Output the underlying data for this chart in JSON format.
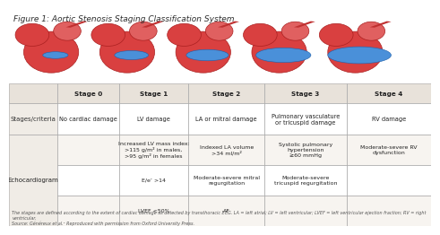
{
  "title": "Figure 1: Aortic Stenosis Staging Classification System",
  "bg_color": "#f5f0eb",
  "header_bg": "#e8e0d8",
  "row_bg_alt": "#f0ebe5",
  "border_color": "#b0a898",
  "text_color": "#333333",
  "red_color": "#c0392b",
  "stages": [
    "Stage 0",
    "Stage 1",
    "Stage 2",
    "Stage 3",
    "Stage 4"
  ],
  "criteria_row_label": "Stages/criteria",
  "criteria_values": [
    "No cardiac damage",
    "LV damage",
    "LA or mitral damage",
    "Pulmonary vasculature\nor tricuspid damage",
    "RV damage"
  ],
  "echo_row_label": "Echocardiogram",
  "echo_sub_rows": [
    [
      "",
      "Increased LV mass index:\n>115 g/m² in males,\n>95 g/m² in females",
      "Indexed LA volume\n>34 ml/m²",
      "Systolic pulmonary\nhypertension\n≥60 mmHg",
      "Moderate-severe RV\ndysfunction"
    ],
    [
      "",
      "E/e’ >14",
      "Moderate-severe mitral\nregurgitation",
      "Moderate-severe\ntricuspid regurgitation",
      ""
    ],
    [
      "",
      "LVEF <50%",
      "AF",
      "",
      ""
    ]
  ],
  "footnote": "The stages are defined according to the extent of cardiac damage as detected by transthoracic ECG. LA = left atrial; LV = left ventricular; LVEF = left ventricular ejection fraction; RV = right ventricular.\nSource: Généreux et al.¹ Reproduced with permission from Oxford University Press."
}
